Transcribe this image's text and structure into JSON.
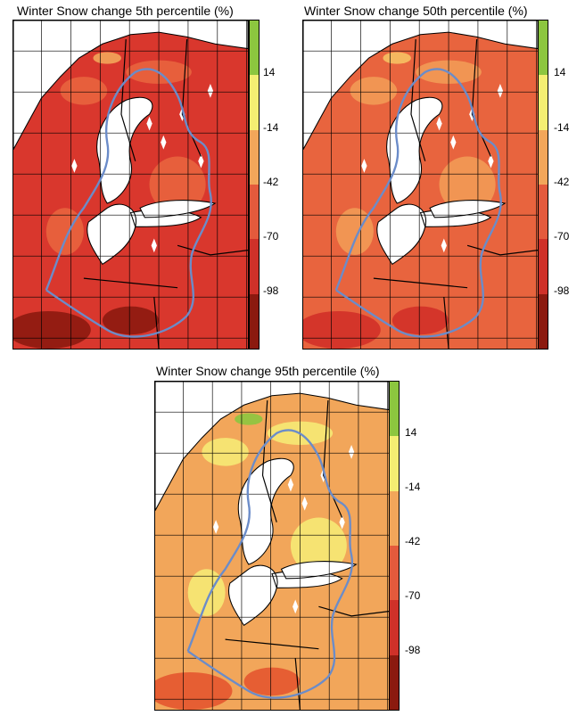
{
  "colorbar": {
    "tick_labels": [
      "14",
      "-14",
      "-42",
      "-70",
      "-98"
    ],
    "colors": [
      "#8cc63f",
      "#f4ee72",
      "#f2a65a",
      "#e45a3c",
      "#cf3129",
      "#8b1a0f"
    ]
  },
  "panels": [
    {
      "title": "Winter Snow change 5th percentile (%)",
      "dominant_class": "-98 to -70",
      "colors": {
        "base": "#d9372d",
        "land_light": "#e8643e",
        "deep": "#8c1a10",
        "light": "#f2a65a"
      }
    },
    {
      "title": "Winter Snow change 50th percentile (%)",
      "dominant_class": "-70 to -42",
      "colors": {
        "base": "#e8643e",
        "land_light": "#f29a55",
        "deep": "#d13028",
        "light": "#f6c163"
      }
    },
    {
      "title": "Winter Snow change 95th percentile (%)",
      "dominant_class": "-42 to -14",
      "colors": {
        "base": "#f2a65a",
        "land_light": "#f6ea74",
        "deep": "#e4562f",
        "light": "#8cc63f"
      }
    }
  ],
  "map_lines": {
    "coast": "#000000",
    "border": "#000000",
    "river_basin": "#6b8cc9",
    "grid": "#000000"
  }
}
